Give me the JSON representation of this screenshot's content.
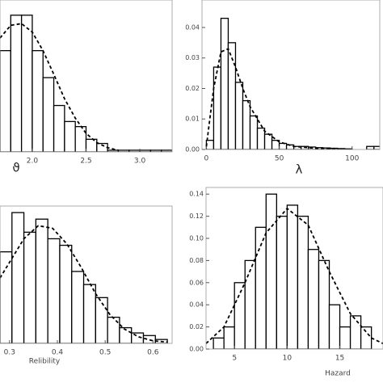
{
  "chart_data": [
    {
      "type": "histogram",
      "xlabel": "ϑ",
      "color": "#ffffff",
      "bins": [
        1.7,
        1.8,
        1.9,
        2.0,
        2.1,
        2.2,
        2.3,
        2.4,
        2.5,
        2.6,
        2.7,
        2.8,
        2.9,
        3.0,
        3.1,
        3.2,
        3.3
      ],
      "counts": [
        1.2,
        1.62,
        1.62,
        1.2,
        0.88,
        0.55,
        0.36,
        0.3,
        0.15,
        0.1,
        0.02,
        0.02,
        0.02,
        0.02,
        0.02,
        0.02
      ],
      "xlim": [
        1.7,
        3.3
      ],
      "ylim": [
        0,
        1.8
      ],
      "xticks": [
        {
          "value": 2,
          "label": "2.0"
        },
        2.5,
        {
          "value": 3,
          "label": "3.0"
        }
      ],
      "curve": {
        "x": [
          1.7,
          1.8,
          1.9,
          2.0,
          2.1,
          2.2,
          2.3,
          2.4,
          2.5,
          2.6,
          2.7,
          2.8
        ],
        "values": [
          1.35,
          1.5,
          1.52,
          1.42,
          1.2,
          0.92,
          0.63,
          0.4,
          0.22,
          0.11,
          0.05,
          0.02
        ]
      }
    },
    {
      "type": "histogram",
      "xlabel": "λ",
      "color": "#ffffff",
      "bins": [
        0,
        5,
        10,
        15,
        20,
        25,
        30,
        35,
        40,
        45,
        50,
        55,
        60,
        65,
        70,
        75,
        80,
        85,
        90,
        95,
        100,
        105,
        110,
        115,
        120
      ],
      "counts": [
        0.003,
        0.027,
        0.043,
        0.035,
        0.022,
        0.016,
        0.011,
        0.007,
        0.005,
        0.003,
        0.002,
        0.0015,
        0.001,
        0.001,
        0.0008,
        0.0006,
        0.0005,
        0.0004,
        0.0003,
        0.0002,
        0,
        0,
        0.001,
        0.001
      ],
      "xlim": [
        -3,
        119
      ],
      "ylim": [
        0,
        0.049
      ],
      "xticks": [
        0,
        50,
        100
      ],
      "yticks": [
        {
          "value": 0,
          "label": "0.00"
        },
        0.01,
        0.02,
        0.03,
        0.04
      ],
      "curve": {
        "x": [
          0,
          5,
          10,
          15,
          20,
          25,
          30,
          40,
          50,
          60,
          80,
          100
        ],
        "values": [
          0.001,
          0.02,
          0.032,
          0.033,
          0.027,
          0.02,
          0.014,
          0.006,
          0.0025,
          0.001,
          0.0002,
          0
        ]
      }
    },
    {
      "type": "histogram",
      "xlabel": "Relibility",
      "color": "#ffffff",
      "bins": [
        0.28,
        0.305,
        0.33,
        0.355,
        0.38,
        0.405,
        0.43,
        0.455,
        0.48,
        0.505,
        0.53,
        0.555,
        0.58,
        0.605,
        0.63
      ],
      "counts": [
        0.7,
        1.0,
        0.85,
        0.95,
        0.8,
        0.75,
        0.55,
        0.45,
        0.35,
        0.2,
        0.12,
        0.08,
        0.06,
        0.03
      ],
      "xlim": [
        0.28,
        0.64
      ],
      "ylim": [
        0,
        1.05
      ],
      "xticks": [
        0.3,
        0.4,
        0.5,
        0.6
      ],
      "curve": {
        "x": [
          0.28,
          0.3,
          0.33,
          0.36,
          0.39,
          0.42,
          0.45,
          0.48,
          0.51,
          0.54,
          0.57,
          0.6,
          0.63
        ],
        "values": [
          0.5,
          0.62,
          0.8,
          0.9,
          0.88,
          0.76,
          0.58,
          0.38,
          0.22,
          0.11,
          0.05,
          0.02,
          0.01
        ]
      }
    },
    {
      "type": "histogram",
      "xlabel": "Hazard",
      "color": "#ffffff",
      "bins": [
        3,
        4,
        5,
        6,
        7,
        8,
        9,
        10,
        11,
        12,
        13,
        14,
        15,
        16,
        17,
        18
      ],
      "counts": [
        0.01,
        0.02,
        0.06,
        0.08,
        0.11,
        0.14,
        0.12,
        0.13,
        0.12,
        0.09,
        0.08,
        0.04,
        0.02,
        0.03,
        0.02
      ],
      "xlim": [
        2.3,
        19.1
      ],
      "ylim": [
        0,
        0.146
      ],
      "xticks": [
        5,
        10,
        15
      ],
      "yticks": [
        {
          "value": 0,
          "label": "0.00"
        },
        0.02,
        0.04,
        0.06,
        0.08,
        {
          "value": 0.1,
          "label": "0.10"
        },
        0.12,
        0.14
      ],
      "curve": {
        "x": [
          2.3,
          4,
          6,
          8,
          10,
          12,
          14,
          16,
          18,
          19.1
        ],
        "values": [
          0.005,
          0.02,
          0.06,
          0.105,
          0.127,
          0.112,
          0.07,
          0.032,
          0.01,
          0.005
        ]
      }
    }
  ]
}
